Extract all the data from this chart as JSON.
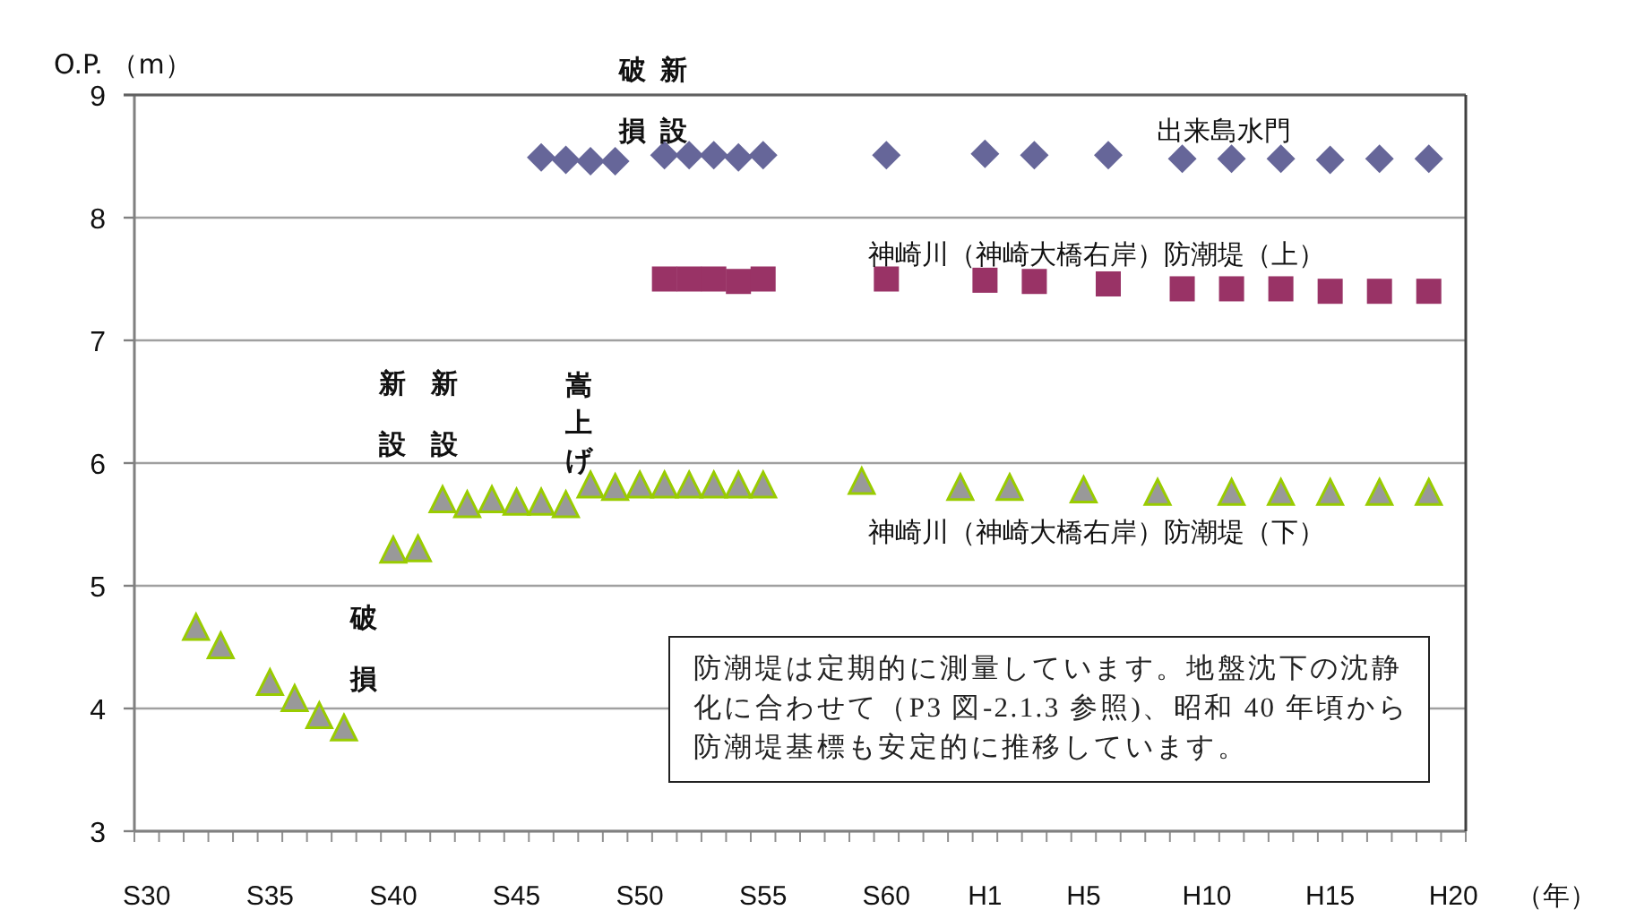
{
  "chart_data": {
    "type": "scatter",
    "ylabel": "O.P. （m）",
    "xlabel": "（年）",
    "ylim": [
      3,
      9
    ],
    "yticks": [
      3,
      4,
      5,
      6,
      7,
      8,
      9
    ],
    "grid": "y",
    "categories": [
      "S30",
      null,
      null,
      null,
      null,
      "S35",
      null,
      null,
      null,
      null,
      "S40",
      null,
      null,
      null,
      null,
      "S45",
      null,
      null,
      null,
      null,
      "S50",
      null,
      null,
      null,
      null,
      "S55",
      null,
      null,
      null,
      null,
      "S60",
      null,
      null,
      null,
      "H1",
      null,
      null,
      null,
      "H5",
      null,
      null,
      null,
      null,
      "H10",
      null,
      null,
      null,
      null,
      "H15",
      null,
      null,
      null,
      null,
      "H20"
    ],
    "series": [
      {
        "name": "出来島水門",
        "color": "#666699",
        "marker": "diamond",
        "values": [
          null,
          null,
          null,
          null,
          null,
          null,
          null,
          null,
          null,
          null,
          null,
          null,
          null,
          null,
          null,
          null,
          8.49,
          8.47,
          8.46,
          8.46,
          null,
          8.51,
          8.51,
          8.51,
          8.49,
          8.51,
          null,
          null,
          null,
          null,
          8.51,
          null,
          null,
          null,
          8.52,
          null,
          8.51,
          null,
          null,
          8.51,
          null,
          null,
          8.48,
          null,
          8.48,
          null,
          8.48,
          null,
          8.47,
          null,
          8.48,
          null,
          8.48,
          null
        ]
      },
      {
        "name": "神崎川（神崎大橋右岸）防潮堤（上）",
        "color": "#993366",
        "marker": "square",
        "values": [
          null,
          null,
          null,
          null,
          null,
          null,
          null,
          null,
          null,
          null,
          null,
          null,
          null,
          null,
          null,
          null,
          null,
          null,
          null,
          null,
          null,
          7.5,
          7.5,
          7.5,
          7.48,
          7.5,
          null,
          null,
          null,
          null,
          7.5,
          null,
          null,
          null,
          7.49,
          null,
          7.48,
          null,
          null,
          7.46,
          null,
          null,
          7.42,
          null,
          7.42,
          null,
          7.42,
          null,
          7.4,
          null,
          7.4,
          null,
          7.4,
          null
        ]
      },
      {
        "name": "神崎川（神崎大橋右岸）防潮堤（下）",
        "color": "#999999",
        "marker": "triangle",
        "values": [
          null,
          null,
          4.65,
          4.5,
          null,
          4.2,
          4.07,
          3.93,
          3.83,
          null,
          5.28,
          5.29,
          5.69,
          5.65,
          5.69,
          5.67,
          5.67,
          5.65,
          5.81,
          5.79,
          5.81,
          5.81,
          5.81,
          5.81,
          5.81,
          5.81,
          null,
          null,
          null,
          5.84,
          null,
          null,
          null,
          5.79,
          null,
          5.79,
          null,
          null,
          5.77,
          null,
          null,
          5.75,
          null,
          null,
          5.75,
          null,
          5.75,
          null,
          5.75,
          null,
          5.75,
          null,
          5.75,
          null
        ]
      }
    ],
    "annotations": [
      "破損",
      "新設",
      "新設",
      "新設",
      "嵩上げ",
      "破損",
      "防潮堤は定期的に測量しています。地盤沈下の沈静化に合わせて（P3 図-2.1.3 参照)、昭和 40 年頃から防潮堤基標も安定的に推移しています。"
    ]
  }
}
